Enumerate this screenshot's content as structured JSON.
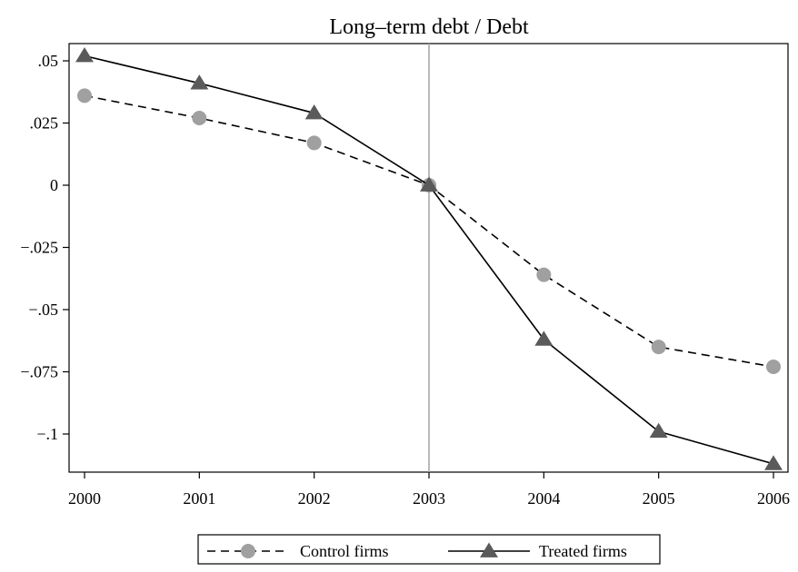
{
  "chart_data": {
    "type": "line",
    "title": "Long–term debt / Debt",
    "xlabel": "",
    "ylabel": "",
    "x": [
      2000,
      2001,
      2002,
      2003,
      2004,
      2005,
      2006
    ],
    "x_tick_labels": [
      "2000",
      "2001",
      "2002",
      "2003",
      "2004",
      "2005",
      "2006"
    ],
    "y_ticks": [
      0.05,
      0.025,
      0,
      -0.025,
      -0.05,
      -0.075,
      -0.1
    ],
    "y_tick_labels": [
      ".05",
      ".025",
      "0",
      "−.025",
      "−.05",
      "−.075",
      "−.1"
    ],
    "xlim": [
      2000,
      2006
    ],
    "ylim": [
      -0.1155,
      0.0565
    ],
    "reference_line_x": 2003,
    "grid": false,
    "legend_position": "bottom",
    "series": [
      {
        "name": "Control firms",
        "values": [
          0.036,
          0.027,
          0.017,
          0.0,
          -0.036,
          -0.065,
          -0.073
        ],
        "color": "#a0a0a0",
        "line_style": "dashed",
        "marker": "circle"
      },
      {
        "name": "Treated firms",
        "values": [
          0.052,
          0.041,
          0.029,
          0.0,
          -0.062,
          -0.099,
          -0.112
        ],
        "color": "#5a5a5a",
        "line_style": "solid",
        "marker": "triangle"
      }
    ]
  }
}
